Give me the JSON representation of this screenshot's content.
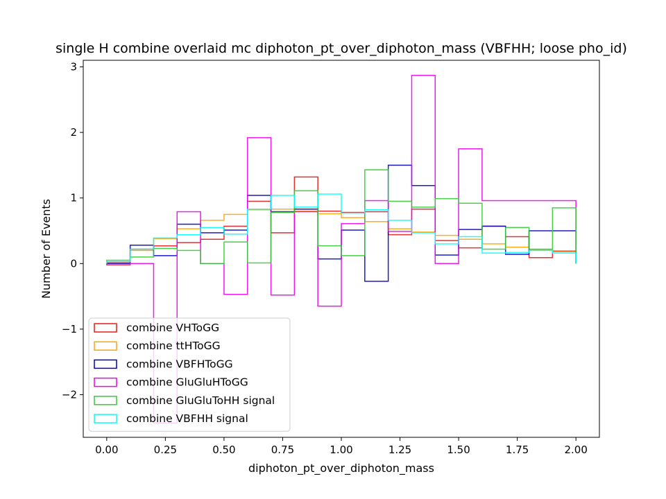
{
  "chart_data": {
    "type": "step-histogram",
    "title": "single H combine overlaid mc diphoton_pt_over_diphoton_mass (VBFHH; loose pho_id)",
    "xlabel": "diphoton_pt_over_diphoton_mass",
    "ylabel": "Number of Events",
    "xlim": [
      -0.1,
      2.1
    ],
    "ylim": [
      -2.65,
      3.1
    ],
    "xticks": [
      0.0,
      0.25,
      0.5,
      0.75,
      1.0,
      1.25,
      1.5,
      1.75,
      2.0
    ],
    "xtick_labels": [
      "0.00",
      "0.25",
      "0.50",
      "0.75",
      "1.00",
      "1.25",
      "1.50",
      "1.75",
      "2.00"
    ],
    "yticks": [
      -2,
      -1,
      0,
      1,
      2,
      3
    ],
    "ytick_labels": [
      "−2",
      "−1",
      "0",
      "1",
      "2",
      "3"
    ],
    "bin_edges": [
      0.0,
      0.1,
      0.2,
      0.3,
      0.4,
      0.5,
      0.6,
      0.7,
      0.8,
      0.9,
      1.0,
      1.1,
      1.2,
      1.3,
      1.4,
      1.5,
      1.6,
      1.7,
      1.8,
      1.9,
      2.0
    ],
    "legend_position": "lower-left",
    "series": [
      {
        "name": "combine VHToGG",
        "color": "#e41a1c",
        "values": [
          -0.02,
          0.22,
          0.27,
          0.32,
          0.37,
          0.57,
          0.95,
          0.47,
          1.32,
          0.8,
          0.78,
          0.79,
          0.44,
          0.83,
          0.35,
          0.24,
          0.57,
          0.41,
          0.09,
          0.19
        ]
      },
      {
        "name": "combine ttHToGG",
        "color": "#ffa500",
        "values": [
          0.02,
          0.2,
          0.38,
          0.53,
          0.66,
          0.75,
          0.82,
          0.83,
          0.8,
          0.76,
          0.7,
          0.64,
          0.53,
          0.48,
          0.43,
          0.37,
          0.3,
          0.25,
          0.21,
          0.18
        ]
      },
      {
        "name": "combine VBFHToGG",
        "color": "#0000cc",
        "values": [
          0.0,
          0.28,
          0.12,
          0.6,
          0.47,
          0.51,
          1.04,
          0.79,
          0.83,
          0.07,
          0.51,
          -0.27,
          1.5,
          1.19,
          0.13,
          0.52,
          0.57,
          0.14,
          0.5,
          0.5
        ]
      },
      {
        "name": "combine GluGluHToGG",
        "color": "#ee00ee",
        "values": [
          0.01,
          0.0,
          -2.43,
          0.79,
          0.0,
          -0.47,
          1.92,
          -0.48,
          0.79,
          -0.65,
          0.61,
          0.96,
          0.49,
          2.87,
          0.0,
          1.75,
          0.96,
          0.96,
          0.96,
          0.96
        ]
      },
      {
        "name": "combine GluGluToHH signal",
        "color": "#33cc33",
        "values": [
          0.05,
          0.1,
          0.23,
          0.2,
          0.0,
          0.33,
          0.01,
          0.78,
          1.11,
          0.27,
          0.12,
          1.43,
          0.95,
          0.86,
          0.99,
          0.92,
          0.22,
          0.55,
          0.22,
          0.85
        ]
      },
      {
        "name": "combine VBFHH signal",
        "color": "#00ffff",
        "values": [
          0.03,
          0.22,
          0.39,
          0.44,
          0.55,
          0.45,
          0.83,
          1.04,
          0.86,
          1.06,
          0.77,
          0.82,
          0.66,
          0.47,
          0.3,
          0.41,
          0.16,
          0.17,
          0.2,
          0.16
        ]
      }
    ]
  }
}
